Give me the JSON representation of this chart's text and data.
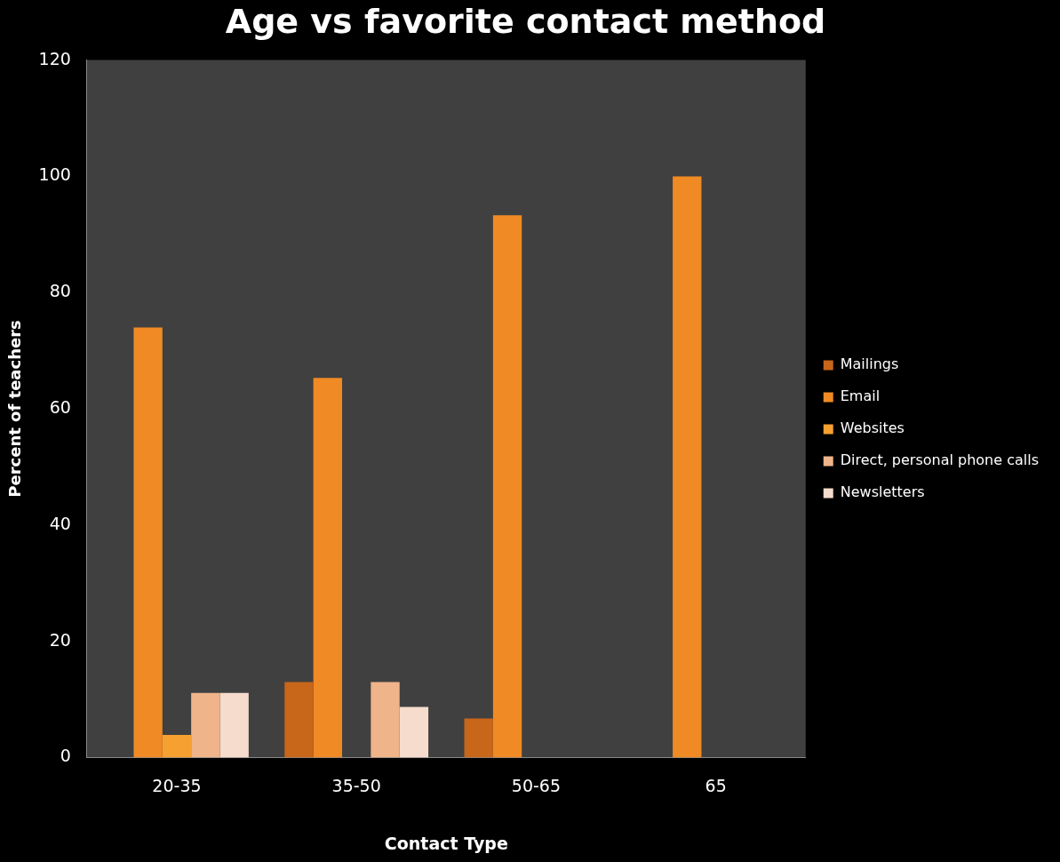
{
  "chart_data": {
    "type": "bar",
    "title": "Age vs favorite contact method",
    "xlabel": "Contact Type",
    "ylabel": "Percent of teachers",
    "categories": [
      "20-35",
      "35-50",
      "50-65",
      "65"
    ],
    "series": [
      {
        "name": "Mailings",
        "color": "#c8661a",
        "values": [
          0,
          13,
          6.7,
          0
        ]
      },
      {
        "name": "Email",
        "color": "#f08a24",
        "values": [
          74,
          65.3,
          93.3,
          100
        ]
      },
      {
        "name": "Websites",
        "color": "#f5a030",
        "values": [
          3.9,
          0,
          0,
          0
        ]
      },
      {
        "name": "Direct, personal phone calls",
        "color": "#f0b48a",
        "values": [
          11.1,
          13,
          0,
          0
        ]
      },
      {
        "name": "Newsletters",
        "color": "#f5dccc",
        "values": [
          11.1,
          8.7,
          0,
          0
        ]
      }
    ],
    "ylim": [
      0,
      120
    ],
    "yticks": [
      0,
      20,
      40,
      60,
      80,
      100,
      120
    ],
    "grid": false,
    "legend": "right"
  }
}
